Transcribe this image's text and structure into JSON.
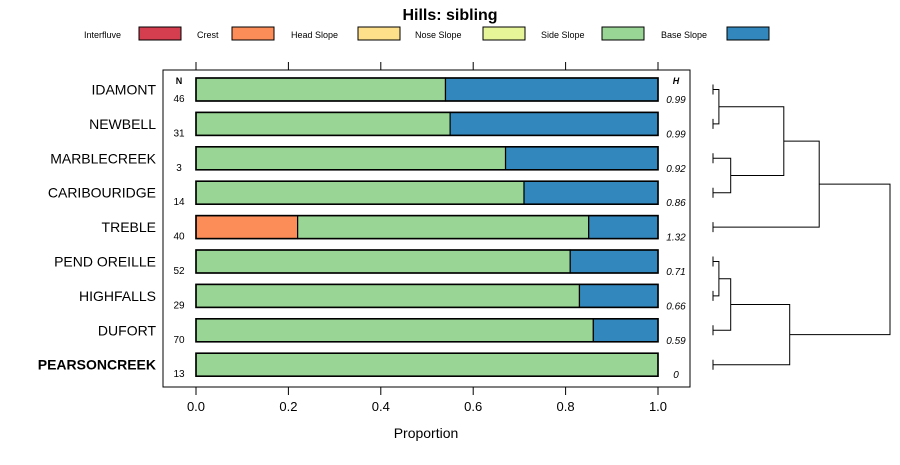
{
  "chart_data": {
    "type": "bar",
    "stacked": true,
    "orientation": "horizontal",
    "title": "Hills: sibling",
    "xlabel": "Proportion",
    "xlim": [
      0,
      1
    ],
    "xticks": [
      "0.0",
      "0.2",
      "0.4",
      "0.6",
      "0.8",
      "1.0"
    ],
    "n_header": "N",
    "h_header": "H",
    "legend_position": "top",
    "legend": [
      {
        "name": "Interfluve",
        "color": "#d53e4f"
      },
      {
        "name": "Crest",
        "color": "#fc8d59"
      },
      {
        "name": "Head Slope",
        "color": "#fee08b"
      },
      {
        "name": "Nose Slope",
        "color": "#e6f598"
      },
      {
        "name": "Side Slope",
        "color": "#99d594"
      },
      {
        "name": "Base Slope",
        "color": "#3288bd"
      }
    ],
    "rows": [
      {
        "name": "IDAMONT",
        "n": "46",
        "h": "0.99",
        "bold": false,
        "values": [
          0,
          0,
          0,
          0,
          0.54,
          0.46
        ]
      },
      {
        "name": "NEWBELL",
        "n": "31",
        "h": "0.99",
        "bold": false,
        "values": [
          0,
          0,
          0,
          0,
          0.55,
          0.45
        ]
      },
      {
        "name": "MARBLECREEK",
        "n": "3",
        "h": "0.92",
        "bold": false,
        "values": [
          0,
          0,
          0,
          0,
          0.67,
          0.33
        ]
      },
      {
        "name": "CARIBOURIDGE",
        "n": "14",
        "h": "0.86",
        "bold": false,
        "values": [
          0,
          0,
          0,
          0,
          0.71,
          0.29
        ]
      },
      {
        "name": "TREBLE",
        "n": "40",
        "h": "1.32",
        "bold": false,
        "values": [
          0,
          0.22,
          0,
          0,
          0.63,
          0.15
        ]
      },
      {
        "name": "PEND OREILLE",
        "n": "52",
        "h": "0.71",
        "bold": false,
        "values": [
          0,
          0,
          0,
          0,
          0.81,
          0.19
        ]
      },
      {
        "name": "HIGHFALLS",
        "n": "29",
        "h": "0.66",
        "bold": false,
        "values": [
          0,
          0,
          0,
          0,
          0.83,
          0.17
        ]
      },
      {
        "name": "DUFORT",
        "n": "70",
        "h": "0.59",
        "bold": false,
        "values": [
          0,
          0,
          0,
          0,
          0.86,
          0.14
        ]
      },
      {
        "name": "PEARSONCREEK",
        "n": "13",
        "h": "0",
        "bold": true,
        "values": [
          0,
          0,
          0,
          0,
          1.0,
          0
        ]
      }
    ],
    "dendrogram": {
      "merges": [
        {
          "a": "leaf:0",
          "b": "leaf:1",
          "height": 0.05
        },
        {
          "a": "leaf:2",
          "b": "leaf:3",
          "height": 0.15
        },
        {
          "a": "node:0",
          "b": "node:1",
          "height": 0.6
        },
        {
          "a": "node:2",
          "b": "leaf:4",
          "height": 0.9
        },
        {
          "a": "leaf:5",
          "b": "leaf:6",
          "height": 0.05
        },
        {
          "a": "node:4",
          "b": "leaf:7",
          "height": 0.15
        },
        {
          "a": "node:5",
          "b": "leaf:8",
          "height": 0.65
        },
        {
          "a": "node:3",
          "b": "node:6",
          "height": 1.5
        }
      ]
    }
  }
}
